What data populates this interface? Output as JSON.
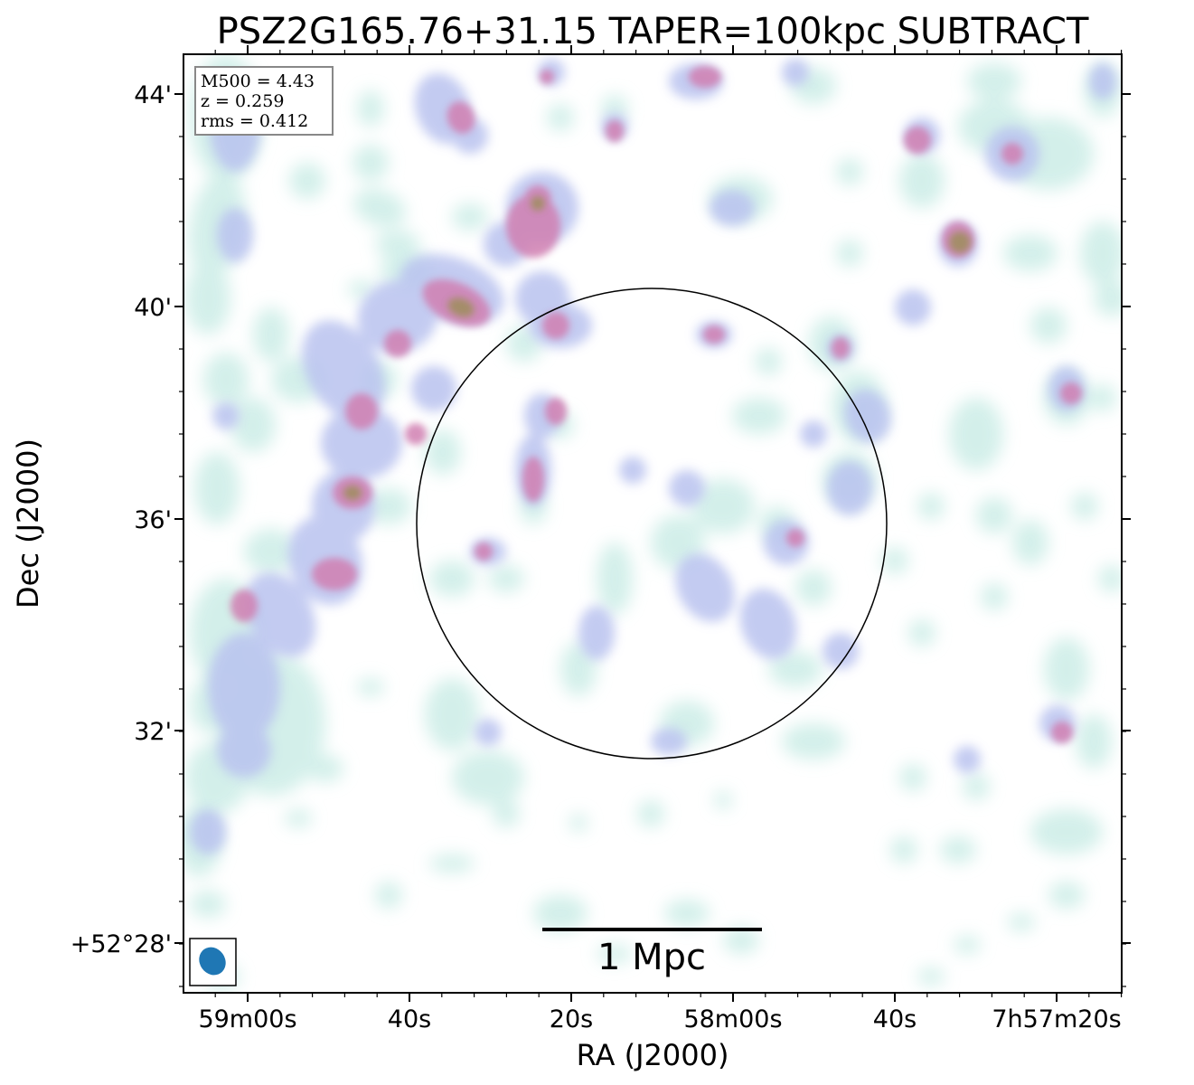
{
  "title": "PSZ2G165.76+31.15 TAPER=100kpc SUBTRACT",
  "info_box": {
    "mass_line": "M500 = 4.43",
    "redshift_line": "z = 0.259",
    "rms_line": "rms = 0.412"
  },
  "axes": {
    "xlabel": "RA (J2000)",
    "ylabel": "Dec (J2000)",
    "x_ticks": [
      "59m00s",
      "40s",
      "20s",
      "58m00s",
      "40s",
      "7h57m20s"
    ],
    "y_ticks": [
      "44'",
      "40'",
      "36'",
      "32'",
      "+52°28'"
    ]
  },
  "scale_bar": {
    "label": "1 Mpc"
  },
  "colors": {
    "low_emission": "#cfeee8",
    "mid_emission": "#b9c2ef",
    "high_emission": "#d07fb1",
    "peak_emission": "#9a8e55",
    "beam": "#1f77b4",
    "frame": "#000000"
  }
}
